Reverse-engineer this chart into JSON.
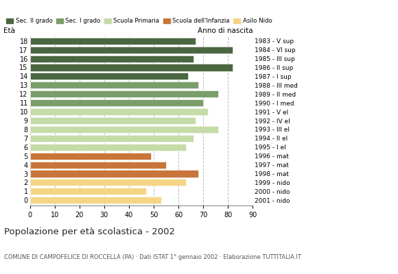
{
  "ages": [
    18,
    17,
    16,
    15,
    14,
    13,
    12,
    11,
    10,
    9,
    8,
    7,
    6,
    5,
    4,
    3,
    2,
    1,
    0
  ],
  "values": [
    67,
    82,
    66,
    82,
    64,
    68,
    76,
    70,
    72,
    67,
    76,
    66,
    63,
    49,
    55,
    68,
    63,
    47,
    53
  ],
  "years": [
    "1983 - V sup",
    "1984 - VI sup",
    "1985 - III sup",
    "1986 - II sup",
    "1987 - I sup",
    "1988 - III med",
    "1989 - II med",
    "1990 - I med",
    "1991 - V el",
    "1992 - IV el",
    "1993 - III el",
    "1994 - II el",
    "1995 - I el",
    "1996 - mat",
    "1997 - mat",
    "1998 - mat",
    "1999 - nido",
    "2000 - nido",
    "2001 - nido"
  ],
  "categories": [
    "Sec. II grado",
    "Sec. I grado",
    "Scuola Primaria",
    "Scuola dell'Infanzia",
    "Asilo Nido"
  ],
  "colors": {
    "Sec. II grado": "#4a6741",
    "Sec. I grado": "#7a9e6a",
    "Scuola Primaria": "#c5dba8",
    "Scuola dell'Infanzia": "#c8743a",
    "Asilo Nido": "#f5d585"
  },
  "age_category": {
    "18": "Sec. II grado",
    "17": "Sec. II grado",
    "16": "Sec. II grado",
    "15": "Sec. II grado",
    "14": "Sec. II grado",
    "13": "Sec. I grado",
    "12": "Sec. I grado",
    "11": "Sec. I grado",
    "10": "Scuola Primaria",
    "9": "Scuola Primaria",
    "8": "Scuola Primaria",
    "7": "Scuola Primaria",
    "6": "Scuola Primaria",
    "5": "Scuola dell'Infanzia",
    "4": "Scuola dell'Infanzia",
    "3": "Scuola dell'Infanzia",
    "2": "Asilo Nido",
    "1": "Asilo Nido",
    "0": "Asilo Nido"
  },
  "title": "Popolazione per età scolastica - 2002",
  "subtitle": "COMUNE DI CAMPOFELICE DI ROCCELLA (PA) · Dati ISTAT 1° gennaio 2002 · Elaborazione TUTTITALIA.IT",
  "xlabel_eta": "Età",
  "xlabel_anno": "Anno di nascita",
  "xlim": [
    0,
    90
  ],
  "xticks": [
    0,
    10,
    20,
    30,
    40,
    50,
    60,
    70,
    80,
    90
  ],
  "background_color": "#ffffff",
  "grid_color": "#bbbbbb"
}
